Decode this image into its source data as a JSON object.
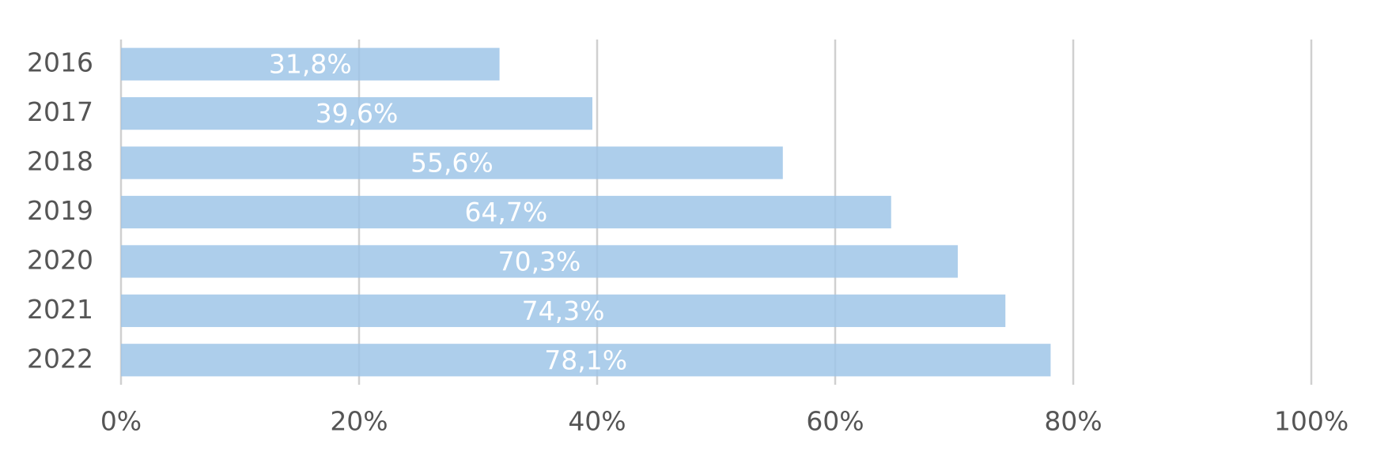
{
  "chart_data": {
    "type": "hbar",
    "categories": [
      "2016",
      "2017",
      "2018",
      "2019",
      "2020",
      "2021",
      "2022"
    ],
    "values": [
      31.8,
      39.6,
      55.6,
      64.7,
      70.3,
      74.3,
      78.1
    ],
    "value_labels": [
      "31,8%",
      "39,6%",
      "55,6%",
      "64,7%",
      "70,3%",
      "74,3%",
      "78,1%"
    ],
    "color": "#9fc5e8",
    "xlim": [
      0,
      100
    ],
    "xticks": [
      {
        "value": 0,
        "label": "0%"
      },
      {
        "value": 20,
        "label": "20%"
      },
      {
        "value": 40,
        "label": "40%"
      },
      {
        "value": 60,
        "label": "60%"
      },
      {
        "value": 80,
        "label": "80%"
      },
      {
        "value": 100,
        "label": "100%"
      }
    ],
    "grid": true
  }
}
